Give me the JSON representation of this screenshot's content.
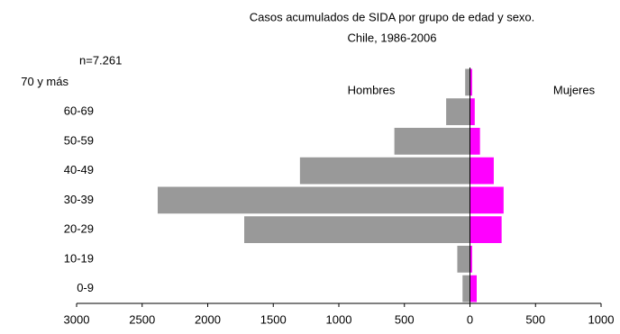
{
  "chart_data": {
    "type": "pyramid",
    "title": "Casos acumulados de SIDA por grupo de edad y sexo.",
    "subtitle": "Chile, 1986-2006",
    "annotation": "n=7.261",
    "categories": [
      "0-9",
      "10-19",
      "20-29",
      "30-39",
      "40-49",
      "50-59",
      "60-69",
      "70 y más"
    ],
    "series": [
      {
        "name": "Hombres",
        "color": "#999999",
        "values": [
          -60,
          -100,
          -1725,
          -2385,
          -1300,
          -580,
          -185,
          -40
        ]
      },
      {
        "name": "Mujeres",
        "color": "#ff00ff",
        "values": [
          55,
          20,
          245,
          260,
          185,
          80,
          40,
          20
        ]
      }
    ],
    "xlim": [
      -3000,
      1000
    ],
    "xticks": [
      {
        "value": -3000,
        "label": "3000"
      },
      {
        "value": -2500,
        "label": "2500"
      },
      {
        "value": -2000,
        "label": "2000"
      },
      {
        "value": -1500,
        "label": "1500"
      },
      {
        "value": -1000,
        "label": "1000"
      },
      {
        "value": -500,
        "label": "500"
      },
      0,
      500,
      1000
    ],
    "grid": false
  }
}
